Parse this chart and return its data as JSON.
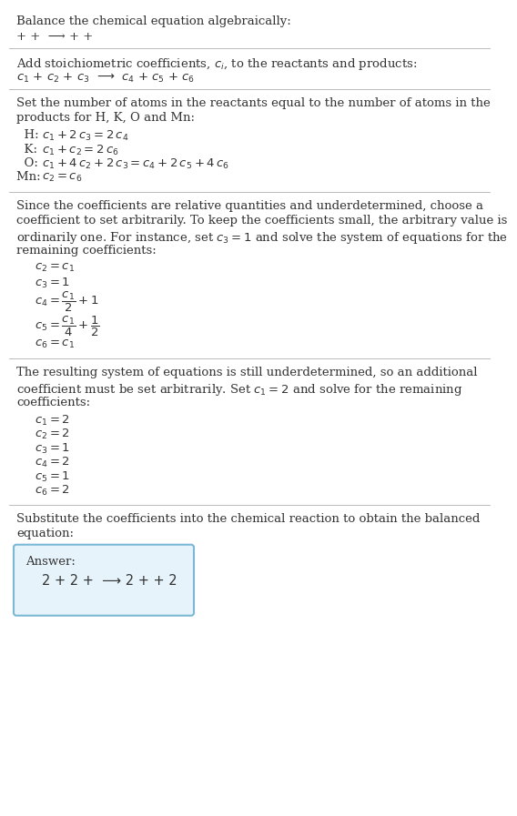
{
  "title": "Balance the chemical equation algebraically:",
  "section1_line1": "+ +  ⟶ + +",
  "section2_header": "Add stoichiometric coefficients, $c_i$, to the reactants and products:",
  "section2_line1": "$c_1$ + $c_2$ + $c_3$  ⟶  $c_4$ + $c_5$ + $c_6$",
  "section3_header1": "Set the number of atoms in the reactants equal to the number of atoms in the",
  "section3_header2": "products for H, K, O and Mn:",
  "section3_equations": [
    [
      "  H: ",
      "$c_1 + 2\\,c_3 = 2\\,c_4$"
    ],
    [
      "  K: ",
      "$c_1 + c_2 = 2\\,c_6$"
    ],
    [
      "  O: ",
      "$c_1 + 4\\,c_2 + 2\\,c_3 = c_4 + 2\\,c_5 + 4\\,c_6$"
    ],
    [
      "Mn: ",
      "$c_2 = c_6$"
    ]
  ],
  "section4_header1": "Since the coefficients are relative quantities and underdetermined, choose a",
  "section4_header2": "coefficient to set arbitrarily. To keep the coefficients small, the arbitrary value is",
  "section4_header3": "ordinarily one. For instance, set $c_3 = 1$ and solve the system of equations for the",
  "section4_header4": "remaining coefficients:",
  "section4_equations": [
    "$c_2 = c_1$",
    "$c_3 = 1$",
    "$c_4 = \\dfrac{c_1}{2} + 1$",
    "$c_5 = \\dfrac{c_1}{4} + \\dfrac{1}{2}$",
    "$c_6 = c_1$"
  ],
  "section5_header1": "The resulting system of equations is still underdetermined, so an additional",
  "section5_header2": "coefficient must be set arbitrarily. Set $c_1 = 2$ and solve for the remaining",
  "section5_header3": "coefficients:",
  "section5_equations": [
    "$c_1 = 2$",
    "$c_2 = 2$",
    "$c_3 = 1$",
    "$c_4 = 2$",
    "$c_5 = 1$",
    "$c_6 = 2$"
  ],
  "section6_header1": "Substitute the coefficients into the chemical reaction to obtain the balanced",
  "section6_header2": "equation:",
  "answer_label": "Answer:",
  "answer_line": "2 + 2 +  ⟶ 2 + + 2",
  "bg_color": "#ffffff",
  "text_color": "#333333",
  "answer_box_facecolor": "#e6f3fb",
  "answer_box_edgecolor": "#7ab8d4",
  "separator_color": "#bbbbbb",
  "fs": 9.5
}
